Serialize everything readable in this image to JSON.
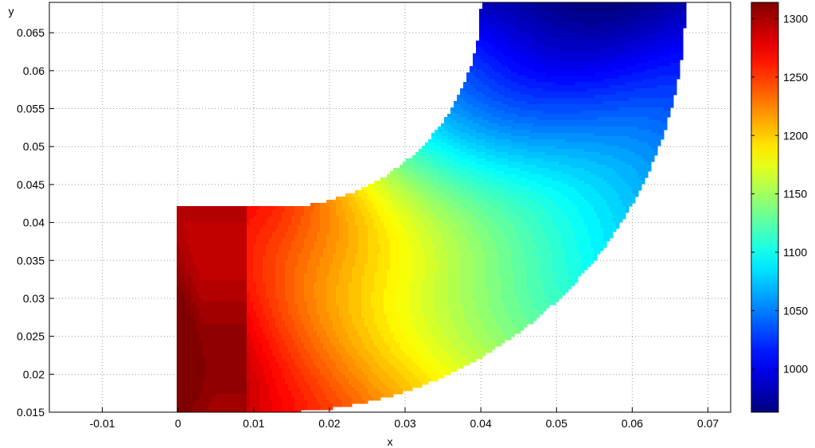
{
  "chart_data": {
    "type": "heatmap",
    "title": "",
    "xlabel": "x",
    "ylabel": "y",
    "xlim": [
      -0.017,
      0.073
    ],
    "ylim": [
      0.015,
      0.069
    ],
    "x_ticks": [
      "-0.01",
      "0",
      "0.01",
      "0.02",
      "0.03",
      "0.04",
      "0.05",
      "0.06",
      "0.07"
    ],
    "y_ticks": [
      "0.015",
      "0.02",
      "0.025",
      "0.03",
      "0.035",
      "0.04",
      "0.045",
      "0.05",
      "0.055",
      "0.06",
      "0.065"
    ],
    "grid": true,
    "colormap": "jet",
    "colorbar": {
      "range": [
        963,
        1314
      ],
      "ticks": [
        "1000",
        "1050",
        "1100",
        "1150",
        "1200",
        "1250",
        "1300"
      ]
    },
    "domain_shape": "bent duct: rectangular section from x=0 to about x=0.013 (y 0.015 to 0.042) joined to a quarter-annulus bend ending in a vertical section from x≈0.040 to x≈0.055 (y up to 0.069)",
    "field_trend": [
      {
        "x": 0.005,
        "y": 0.03,
        "value": 1310
      },
      {
        "x": 0.015,
        "y": 0.03,
        "value": 1280
      },
      {
        "x": 0.022,
        "y": 0.03,
        "value": 1240
      },
      {
        "x": 0.028,
        "y": 0.03,
        "value": 1190
      },
      {
        "x": 0.033,
        "y": 0.035,
        "value": 1130
      },
      {
        "x": 0.038,
        "y": 0.045,
        "value": 1070
      },
      {
        "x": 0.045,
        "y": 0.055,
        "value": 1010
      },
      {
        "x": 0.048,
        "y": 0.065,
        "value": 975
      }
    ]
  }
}
